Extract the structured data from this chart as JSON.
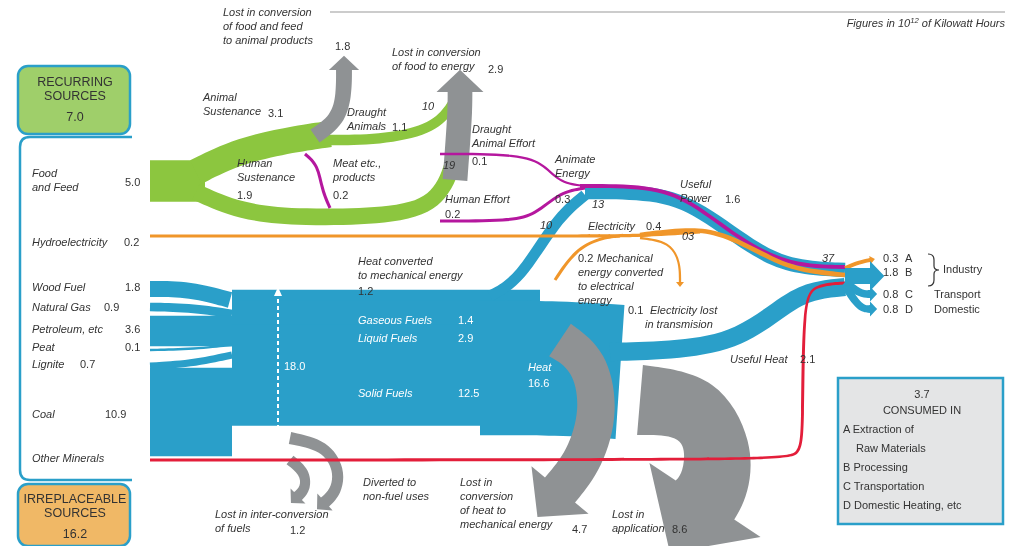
{
  "chart_data": {
    "type": "other",
    "categories": [
      "Food and Feed",
      "Hydroelectricity",
      "Wood Fuel",
      "Natural Gas",
      "Petroleum, etc",
      "Peat",
      "Lignite",
      "Coal",
      "Other Minerals",
      "Animal Sustenance",
      "Human Sustenance",
      "Lost in conversion of food and feed to animal products",
      "Draught Animals",
      "Meat etc., products",
      "Lost in conversion of food to energy",
      "Draught Animal Effort",
      "Human Effort",
      "Animate Energy",
      "Useful Power",
      "Electricity",
      "Heat converted to mechanical energy",
      "Mechanical energy converted to electrical energy",
      "Electricity lost in transmision",
      "Gaseous Fuels",
      "Liquid Fuels",
      "Solid Fuels",
      "Heat",
      "Useful Heat",
      "Lost in inter-conversion of fuels",
      "Diverted to non-fuel uses",
      "Lost in conversion of heat to mechanical energy",
      "Lost in application",
      "A",
      "B",
      "C",
      "D"
    ],
    "values": [
      5.0,
      0.2,
      1.8,
      0.9,
      3.6,
      0.1,
      0.7,
      10.9,
      null,
      3.1,
      1.9,
      1.8,
      1.1,
      0.2,
      2.9,
      0.1,
      0.2,
      0.3,
      1.6,
      0.4,
      1.2,
      0.2,
      0.1,
      1.4,
      2.9,
      12.5,
      16.6,
      2.1,
      1.2,
      null,
      4.7,
      8.6,
      0.3,
      1.8,
      0.8,
      0.8
    ],
    "value_labels": [
      "5.0",
      "0.2",
      "1.8",
      "0.9",
      "3.6",
      "0.1",
      "0.7",
      "10.9",
      null,
      "3.1",
      "1.9",
      "1.8",
      "1.1",
      "0.2",
      "2.9",
      "0.1",
      "0.2",
      "0.3",
      "1.6",
      "0.4",
      "1.2",
      "0.2",
      "0.1",
      "1.4",
      "2.9",
      "12.5",
      "16.6",
      "2.1",
      "1.2",
      null,
      "4.7",
      "8.6",
      "0.3",
      "1.8",
      "0.8",
      "0.8"
    ],
    "colors": [
      "#8cc63f",
      "#f0962a",
      "#2a9fc9",
      "#2a9fc9",
      "#2a9fc9",
      "#2a9fc9",
      "#2a9fc9",
      "#2a9fc9",
      "#e31e3a",
      "#8cc63f",
      "#8cc63f",
      "#8f9294",
      "#8cc63f",
      "#b5179e",
      "#8f9294",
      "#b5179e",
      "#b5179e",
      "#b5179e",
      "#2a9fc9",
      "#f0962a",
      "#2a9fc9",
      "#f0962a",
      "#f0962a",
      "#2a9fc9",
      "#2a9fc9",
      "#2a9fc9",
      "#2a9fc9",
      "#2a9fc9",
      "#8f9294",
      "#8f9294",
      "#8f9294",
      "#8f9294",
      "#f0962a",
      "#2a9fc9",
      "#2a9fc9",
      "#2a9fc9"
    ],
    "annotations": [
      "Figures in 10$^{12}$ of Kilowatt Hours",
      "RECURRING SOURCES",
      "7.0",
      "IRREPLACEABLE SOURCES",
      "16.2",
      "3.7",
      "CONSUMED IN",
      "A Extraction of Raw Materials",
      "B Processing",
      "C Transportation",
      "D Domestic Heating, etc",
      "Industry",
      "Transport",
      "Domestic",
      "18.0",
      "10",
      "19",
      "10",
      "13",
      "03",
      "37"
    ]
  }
}
